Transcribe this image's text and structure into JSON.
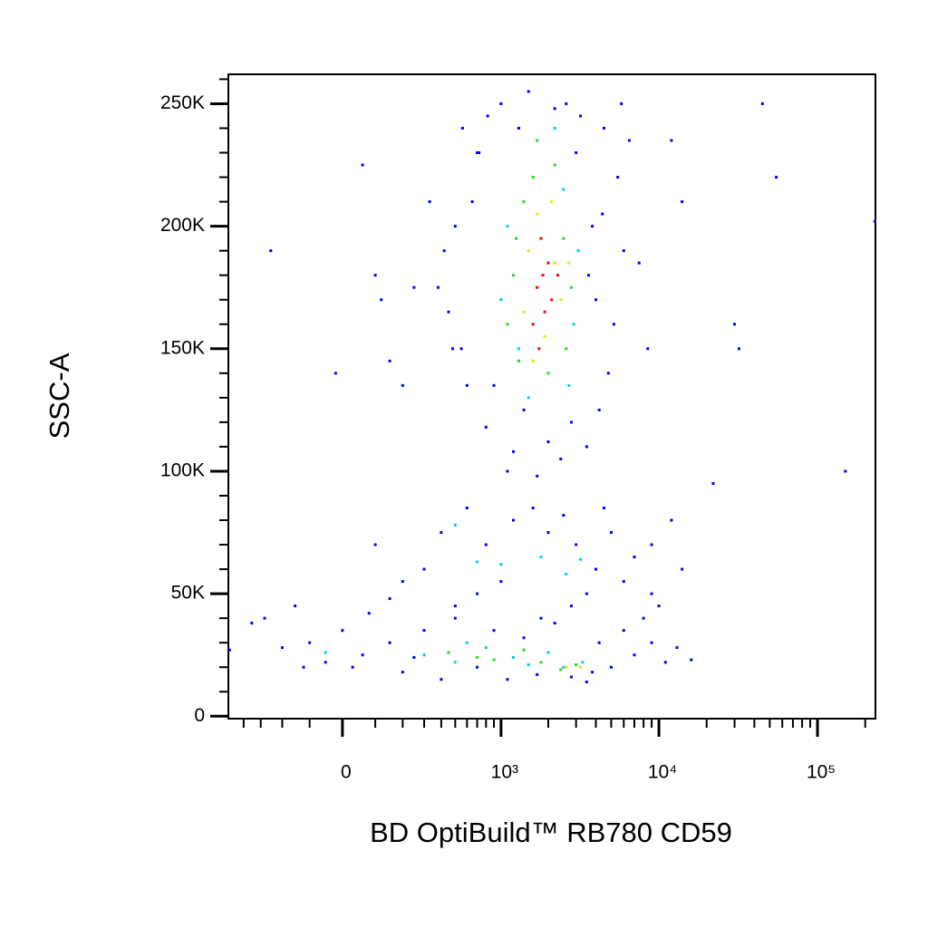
{
  "chart_data": {
    "type": "scatter",
    "xlabel": "BD OptiBuild™ RB780 CD59",
    "ylabel": "SSC-A",
    "xscale": "biexponential",
    "xlim": [
      -510,
      232000
    ],
    "ylim": [
      -1000,
      262000
    ],
    "xticks": [
      0,
      {
        "value": 1000,
        "label": "10³"
      },
      {
        "value": 10000,
        "label": "10⁴"
      },
      {
        "value": 100000,
        "label": "10⁵"
      }
    ],
    "xminorticks": [
      -400,
      -300,
      -200,
      -100,
      100,
      200,
      300,
      400,
      500,
      600,
      700,
      800,
      900,
      2000,
      3000,
      4000,
      5000,
      6000,
      7000,
      8000,
      9000,
      20000,
      30000,
      40000,
      50000,
      60000,
      70000,
      80000,
      90000,
      200000
    ],
    "yticks": [
      0,
      {
        "value": 50000,
        "label": "50K"
      },
      {
        "value": 100000,
        "label": "100K"
      },
      {
        "value": 150000,
        "label": "150K"
      },
      {
        "value": 200000,
        "label": "200K"
      },
      {
        "value": 250000,
        "label": "250K"
      }
    ],
    "yminorticks": [
      10000,
      20000,
      30000,
      40000,
      60000,
      70000,
      80000,
      90000,
      110000,
      120000,
      130000,
      140000,
      160000,
      170000,
      180000,
      190000,
      210000,
      220000,
      230000,
      240000,
      260000
    ],
    "series": [
      {
        "color": "#0000ff",
        "x": [
          480,
          560,
          720,
          1000,
          1500,
          2200,
          3200,
          4500,
          650,
          5500,
          6000,
          5200,
          4800,
          4200,
          3500,
          2400,
          1700,
          1200,
          800,
          600,
          450,
          420,
          500,
          3800,
          4000,
          700,
          900,
          2800,
          3000,
          1300,
          6500,
          7500,
          8500,
          380,
          330,
          5800,
          2000,
          1400,
          3600,
          550,
          4400,
          2600,
          1100,
          820
        ],
        "y": [
          150000,
          240000,
          230000,
          250000,
          255000,
          248000,
          245000,
          240000,
          210000,
          220000,
          190000,
          160000,
          140000,
          125000,
          110000,
          105000,
          98000,
          108000,
          118000,
          135000,
          165000,
          190000,
          200000,
          200000,
          170000,
          230000,
          135000,
          120000,
          230000,
          240000,
          235000,
          185000,
          150000,
          175000,
          210000,
          250000,
          112000,
          125000,
          180000,
          150000,
          205000,
          250000,
          100000,
          245000
        ]
      },
      {
        "color": "#0000ff",
        "x": [
          -250,
          60,
          120,
          100,
          150,
          -20,
          200,
          250,
          12000,
          30000,
          32000,
          45000,
          55000,
          150000,
          22000,
          230000,
          14000
        ],
        "y": [
          190000,
          225000,
          170000,
          180000,
          145000,
          140000,
          135000,
          175000,
          235000,
          160000,
          150000,
          250000,
          220000,
          100000,
          95000,
          202000,
          210000
        ]
      },
      {
        "color": "#0000ff",
        "x": [
          300,
          400,
          600,
          800,
          1000,
          1200,
          1600,
          2000,
          2500,
          3000,
          4000,
          5000,
          6000,
          7000,
          9000,
          12000,
          14000,
          500,
          700,
          3500,
          200,
          100,
          150,
          9000,
          1800,
          2800,
          4500
        ],
        "y": [
          60000,
          75000,
          85000,
          70000,
          55000,
          80000,
          85000,
          75000,
          82000,
          70000,
          60000,
          75000,
          55000,
          65000,
          70000,
          80000,
          60000,
          45000,
          50000,
          50000,
          55000,
          70000,
          48000,
          50000,
          40000,
          45000,
          85000
        ]
      },
      {
        "color": "#0000ff",
        "x": [
          -500,
          -350,
          -280,
          -200,
          -150,
          -100,
          -50,
          0,
          30,
          80,
          150,
          200,
          300,
          400,
          500,
          700,
          900,
          1100,
          1400,
          1700,
          2200,
          2800,
          3500,
          4200,
          5000,
          6000,
          7000,
          9000,
          11000,
          13000,
          16000,
          8000,
          10000,
          -120,
          60,
          250,
          3800
        ],
        "y": [
          27000,
          38000,
          40000,
          28000,
          45000,
          30000,
          22000,
          35000,
          20000,
          42000,
          30000,
          18000,
          35000,
          15000,
          40000,
          20000,
          35000,
          15000,
          32000,
          17000,
          38000,
          16000,
          14000,
          30000,
          20000,
          35000,
          25000,
          30000,
          22000,
          28000,
          23000,
          40000,
          45000,
          20000,
          25000,
          24000,
          18000
        ]
      },
      {
        "color": "#00ccff",
        "x": [
          1100,
          1300,
          2500,
          2900,
          1000,
          2700,
          1500,
          3100,
          2200,
          1000,
          1800,
          2600,
          700,
          3200,
          500,
          300,
          500,
          800,
          1200,
          2000,
          2500,
          3300,
          1500,
          600,
          -50
        ],
        "y": [
          200000,
          150000,
          215000,
          160000,
          170000,
          135000,
          130000,
          190000,
          240000,
          62000,
          65000,
          58000,
          63000,
          64000,
          78000,
          25000,
          22000,
          28000,
          24000,
          26000,
          20000,
          22000,
          21000,
          30000,
          26000
        ]
      },
      {
        "color": "#22dd22",
        "x": [
          1200,
          1400,
          1600,
          2200,
          2500,
          1100,
          1300,
          2000,
          2600,
          1700,
          2800,
          1250,
          450,
          900,
          1800,
          2400,
          3000,
          1400,
          700
        ],
        "y": [
          180000,
          210000,
          220000,
          225000,
          195000,
          160000,
          145000,
          140000,
          150000,
          235000,
          175000,
          195000,
          26000,
          23000,
          22000,
          19000,
          21000,
          27000,
          24000
        ]
      },
      {
        "color": "#e8e800",
        "x": [
          1500,
          1700,
          2100,
          1900,
          2400,
          1400,
          2200,
          1600,
          2700,
          2600,
          3200
        ],
        "y": [
          190000,
          205000,
          210000,
          155000,
          170000,
          165000,
          185000,
          145000,
          185000,
          20000,
          20000
        ]
      },
      {
        "color": "#ff0000",
        "x": [
          1700,
          1900,
          2000,
          1800,
          1600,
          2100,
          1750,
          2300,
          1850
        ],
        "y": [
          175000,
          165000,
          185000,
          195000,
          160000,
          170000,
          150000,
          180000,
          180000
        ]
      }
    ]
  }
}
